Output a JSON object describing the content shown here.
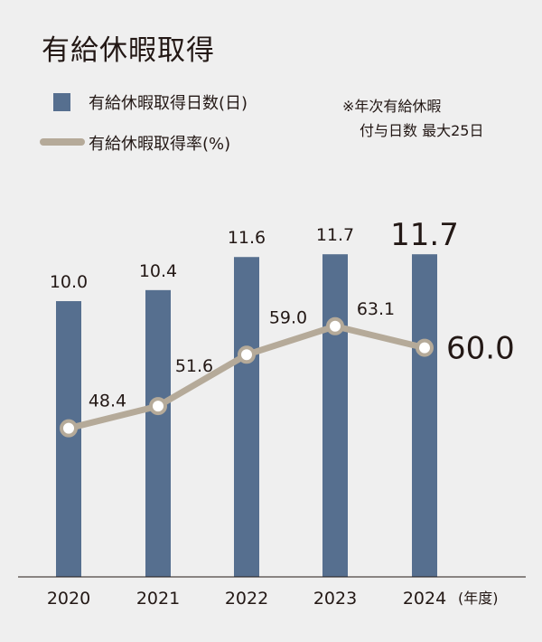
{
  "title": "有給休暇取得",
  "legend": {
    "bar_label": "有給休暇取得日数(日)",
    "line_label": "有給休暇取得率(%)"
  },
  "note": {
    "line1": "※年次有給休暇",
    "line2": "付与日数 最大25日"
  },
  "unit_label": "(年度)",
  "colors": {
    "bar": "#566f8f",
    "line": "#b5aa99",
    "marker_fill": "#ffffff",
    "background": "#efefef",
    "axis": "#231815"
  },
  "chart_data": {
    "type": "bar",
    "categories": [
      "2020",
      "2021",
      "2022",
      "2023",
      "2024"
    ],
    "series": [
      {
        "name": "有給休暇取得日数(日)",
        "type": "bar",
        "values": [
          10.0,
          10.4,
          11.6,
          11.7,
          11.7
        ],
        "labels": [
          "10.0",
          "10.4",
          "11.6",
          "11.7",
          "11.7"
        ]
      },
      {
        "name": "有給休暇取得率(%)",
        "type": "line",
        "values": [
          48.4,
          51.6,
          59.0,
          63.1,
          60.0
        ],
        "labels": [
          "48.4",
          "51.6",
          "59.0",
          "63.1",
          "60.0"
        ]
      }
    ],
    "bar_axis_range": [
      0,
      14.1
    ],
    "line_axis_range": [
      27,
      83
    ],
    "grid": false,
    "legend_position": "top-left"
  }
}
